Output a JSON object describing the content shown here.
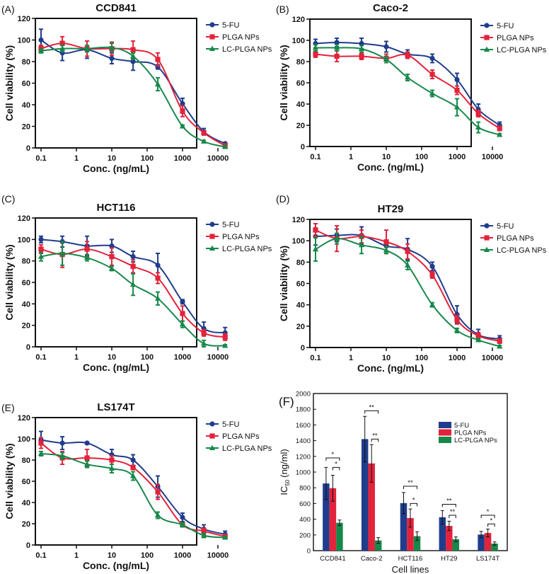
{
  "colors": {
    "5-FU": "#1f3d8c",
    "PLGA NPs": "#e2233b",
    "LC-PLGA NPs": "#16884a"
  },
  "chart_data": [
    {
      "panel": "(A)",
      "type": "scatter",
      "title": "CCD841",
      "xlabel": "Conc. (ng/mL)",
      "ylabel": "Cell viability (%)",
      "xscale": "log",
      "xticks": [
        "0.1",
        "1",
        "10",
        "100",
        "1000",
        "10000"
      ],
      "ylim": [
        0,
        120
      ],
      "yticks": [
        "0",
        "20",
        "40",
        "60",
        "80",
        "100",
        "120"
      ],
      "legend": "right",
      "x": [
        0.1,
        0.4,
        2,
        10,
        40,
        200,
        1000,
        4000,
        16000
      ],
      "series": [
        {
          "name": "5-FU",
          "marker": "circle",
          "y": [
            100,
            88,
            91,
            83,
            80,
            75,
            41,
            15,
            4
          ],
          "err": [
            10,
            7,
            8,
            5,
            8,
            2,
            5,
            3,
            1
          ]
        },
        {
          "name": "PLGA NPs",
          "marker": "square",
          "y": [
            92,
            97,
            92,
            92,
            91,
            82,
            34,
            14,
            2
          ],
          "err": [
            3,
            6,
            7,
            6,
            8,
            6,
            5,
            2,
            1
          ]
        },
        {
          "name": "LC-PLGA NPs",
          "marker": "triangle",
          "y": [
            90,
            92,
            92,
            93,
            85,
            59,
            20,
            6,
            1
          ],
          "err": [
            2,
            3,
            3,
            4,
            3,
            6,
            1,
            1,
            1
          ]
        }
      ]
    },
    {
      "panel": "(B)",
      "type": "scatter",
      "title": "Caco-2",
      "xlabel": "Conc. (ng/mL)",
      "ylabel": "Cell viability (%)",
      "xscale": "log",
      "xticks": [
        "0.1",
        "1",
        "10",
        "100",
        "1000",
        "10000"
      ],
      "ylim": [
        0,
        120
      ],
      "yticks": [
        "0",
        "20",
        "40",
        "60",
        "80",
        "100",
        "120"
      ],
      "legend": "right",
      "x": [
        0.1,
        0.4,
        2,
        10,
        40,
        200,
        1000,
        4000,
        16000
      ],
      "series": [
        {
          "name": "5-FU",
          "marker": "circle",
          "y": [
            97,
            98,
            97,
            94,
            87,
            83,
            63,
            35,
            20
          ],
          "err": [
            4,
            4,
            5,
            5,
            4,
            4,
            6,
            5,
            3
          ]
        },
        {
          "name": "PLGA NPs",
          "marker": "square",
          "y": [
            87,
            85,
            85,
            83,
            86,
            68,
            53,
            31,
            17
          ],
          "err": [
            3,
            5,
            3,
            4,
            3,
            4,
            4,
            3,
            2
          ]
        },
        {
          "name": "LC-PLGA NPs",
          "marker": "triangle",
          "y": [
            93,
            93,
            92,
            82,
            65,
            50,
            37,
            18,
            11
          ],
          "err": [
            3,
            3,
            3,
            3,
            3,
            3,
            8,
            5,
            1
          ]
        }
      ]
    },
    {
      "panel": "(C)",
      "type": "scatter",
      "title": "HCT116",
      "xlabel": "Conc. (ng/mL)",
      "ylabel": "Cell viability (%)",
      "xscale": "log",
      "xticks": [
        "0.1",
        "1",
        "10",
        "100",
        "1000",
        "10000"
      ],
      "ylim": [
        0,
        120
      ],
      "yticks": [
        "0",
        "20",
        "40",
        "60",
        "80",
        "100",
        "120"
      ],
      "legend": "right",
      "x": [
        0.1,
        0.4,
        2,
        10,
        40,
        200,
        1000,
        4000,
        16000
      ],
      "series": [
        {
          "name": "5-FU",
          "marker": "circle",
          "y": [
            100,
            98,
            94,
            94,
            84,
            76,
            42,
            17,
            13
          ],
          "err": [
            3,
            5,
            9,
            6,
            5,
            11,
            2,
            6,
            5
          ]
        },
        {
          "name": "PLGA NPs",
          "marker": "square",
          "y": [
            91,
            86,
            91,
            84,
            75,
            64,
            31,
            13,
            9
          ],
          "err": [
            4,
            12,
            7,
            8,
            6,
            5,
            7,
            3,
            3
          ]
        },
        {
          "name": "LC-PLGA NPs",
          "marker": "triangle",
          "y": [
            84,
            87,
            83,
            73,
            58,
            45,
            21,
            3,
            1
          ],
          "err": [
            4,
            11,
            3,
            2,
            10,
            6,
            3,
            3,
            1
          ]
        }
      ]
    },
    {
      "panel": "(D)",
      "type": "scatter",
      "title": "HT29",
      "xlabel": "Conc. (ng/mL)",
      "ylabel": "Cell viability (%)",
      "xscale": "log",
      "xticks": [
        "0.1",
        "1",
        "10",
        "100",
        "1000",
        "10000"
      ],
      "ylim": [
        0,
        120
      ],
      "yticks": [
        "0",
        "20",
        "40",
        "60",
        "80",
        "100",
        "120"
      ],
      "legend": "right",
      "x": [
        0.1,
        0.4,
        2,
        10,
        40,
        200,
        1000,
        4000,
        16000
      ],
      "series": [
        {
          "name": "5-FU",
          "marker": "circle",
          "y": [
            104,
            105,
            105,
            95,
            92,
            76,
            31,
            12,
            8
          ],
          "err": [
            8,
            6,
            8,
            5,
            10,
            4,
            8,
            5,
            3
          ]
        },
        {
          "name": "PLGA NPs",
          "marker": "square",
          "y": [
            110,
            102,
            104,
            99,
            90,
            68,
            26,
            11,
            6
          ],
          "err": [
            6,
            12,
            6,
            11,
            7,
            3,
            4,
            3,
            2
          ]
        },
        {
          "name": "LC-PLGA NPs",
          "marker": "triangle",
          "y": [
            92,
            102,
            96,
            91,
            77,
            40,
            16,
            7,
            1
          ],
          "err": [
            11,
            5,
            8,
            3,
            4,
            2,
            2,
            1,
            1
          ]
        }
      ]
    },
    {
      "panel": "(E)",
      "type": "scatter",
      "title": "LS174T",
      "xlabel": "Conc. (ng/mL)",
      "ylabel": "Cell viability (%)",
      "xscale": "log",
      "xticks": [
        "0.1",
        "1",
        "10",
        "100",
        "1000",
        "10000"
      ],
      "ylim": [
        0,
        120
      ],
      "yticks": [
        "0",
        "20",
        "40",
        "60",
        "80",
        "100",
        "120"
      ],
      "legend": "right",
      "x": [
        0.1,
        0.4,
        2,
        10,
        40,
        200,
        1000,
        4000,
        16000
      ],
      "series": [
        {
          "name": "5-FU",
          "marker": "circle",
          "y": [
            99,
            96,
            96,
            85,
            80,
            55,
            26,
            15,
            10
          ],
          "err": [
            8,
            6,
            1,
            5,
            5,
            10,
            4,
            4,
            3
          ]
        },
        {
          "name": "PLGA NPs",
          "marker": "square",
          "y": [
            96,
            82,
            82,
            80,
            73,
            50,
            19,
            13,
            8
          ],
          "err": [
            5,
            6,
            8,
            4,
            2,
            7,
            2,
            3,
            2
          ]
        },
        {
          "name": "LC-PLGA NPs",
          "marker": "triangle",
          "y": [
            86,
            84,
            76,
            72,
            65,
            28,
            19,
            9,
            7
          ],
          "err": [
            2,
            3,
            3,
            4,
            4,
            3,
            2,
            2,
            1
          ]
        }
      ]
    },
    {
      "panel": "(F)",
      "type": "bar",
      "xlabel": "Cell lines",
      "ylabel": "IC",
      "ylabel_sub": "50",
      "ylabel_unit": "(ng/ml)",
      "categories": [
        "CCD841",
        "Caco-2",
        "HCT116",
        "HT29",
        "LS174T"
      ],
      "ylim": [
        0,
        2000
      ],
      "yticks": [
        "0",
        "200",
        "400",
        "600",
        "800",
        "1000",
        "1200",
        "1400",
        "1600",
        "1800",
        "2000"
      ],
      "legend": "top-right",
      "series": [
        {
          "name": "5-FU",
          "values": [
            855,
            1420,
            605,
            425,
            205
          ],
          "err": [
            205,
            290,
            135,
            85,
            40
          ]
        },
        {
          "name": "PLGA NPs",
          "values": [
            795,
            1110,
            415,
            315,
            225
          ],
          "err": [
            165,
            240,
            115,
            60,
            50
          ]
        },
        {
          "name": "LC-PLGA NPs",
          "values": [
            355,
            130,
            185,
            145,
            90
          ],
          "err": [
            35,
            35,
            55,
            30,
            20
          ]
        }
      ],
      "significance": [
        {
          "category": "CCD841",
          "from": "5-FU",
          "to": "LC-PLGA NPs",
          "label": "*",
          "y": 1180
        },
        {
          "category": "CCD841",
          "from": "PLGA NPs",
          "to": "LC-PLGA NPs",
          "label": "*",
          "y": 1060
        },
        {
          "category": "Caco-2",
          "from": "5-FU",
          "to": "LC-PLGA NPs",
          "label": "**",
          "y": 1780
        },
        {
          "category": "Caco-2",
          "from": "PLGA NPs",
          "to": "LC-PLGA NPs",
          "label": "**",
          "y": 1420
        },
        {
          "category": "HCT116",
          "from": "5-FU",
          "to": "LC-PLGA NPs",
          "label": "**",
          "y": 820
        },
        {
          "category": "HCT116",
          "from": "PLGA NPs",
          "to": "LC-PLGA NPs",
          "label": "*",
          "y": 600
        },
        {
          "category": "HT29",
          "from": "5-FU",
          "to": "LC-PLGA NPs",
          "label": "**",
          "y": 590
        },
        {
          "category": "HT29",
          "from": "PLGA NPs",
          "to": "LC-PLGA NPs",
          "label": "**",
          "y": 450
        },
        {
          "category": "LS174T",
          "from": "5-FU",
          "to": "LC-PLGA NPs",
          "label": "*",
          "y": 450
        },
        {
          "category": "LS174T",
          "from": "PLGA NPs",
          "to": "LC-PLGA NPs",
          "label": "*",
          "y": 340
        }
      ]
    }
  ]
}
